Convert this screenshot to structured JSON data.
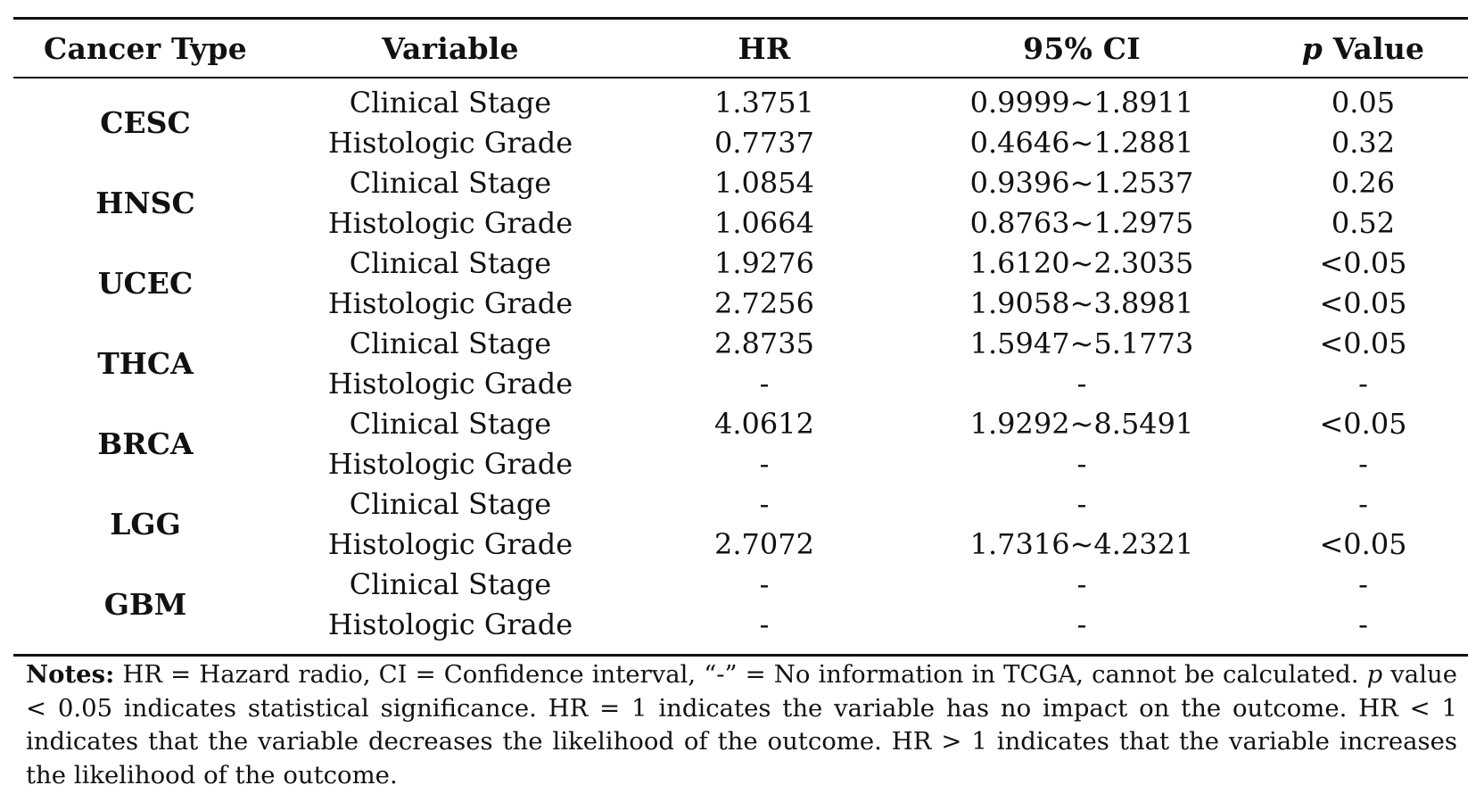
{
  "table": {
    "headers": {
      "cancer_type": "Cancer Type",
      "variable": "Variable",
      "hr": "HR",
      "ci": "95% CI",
      "p_letter": "p",
      "p_rest": " Value"
    },
    "groups": [
      {
        "type": "CESC",
        "rows": [
          {
            "variable": "Clinical Stage",
            "hr": "1.3751",
            "ci": "0.9999~1.8911",
            "p": "0.05"
          },
          {
            "variable": "Histologic Grade",
            "hr": "0.7737",
            "ci": "0.4646~1.2881",
            "p": "0.32"
          }
        ]
      },
      {
        "type": "HNSC",
        "rows": [
          {
            "variable": "Clinical Stage",
            "hr": "1.0854",
            "ci": "0.9396~1.2537",
            "p": "0.26"
          },
          {
            "variable": "Histologic Grade",
            "hr": "1.0664",
            "ci": "0.8763~1.2975",
            "p": "0.52"
          }
        ]
      },
      {
        "type": "UCEC",
        "rows": [
          {
            "variable": "Clinical Stage",
            "hr": "1.9276",
            "ci": "1.6120~2.3035",
            "p": "<0.05"
          },
          {
            "variable": "Histologic Grade",
            "hr": "2.7256",
            "ci": "1.9058~3.8981",
            "p": "<0.05"
          }
        ]
      },
      {
        "type": "THCA",
        "rows": [
          {
            "variable": "Clinical Stage",
            "hr": "2.8735",
            "ci": "1.5947~5.1773",
            "p": "<0.05"
          },
          {
            "variable": "Histologic Grade",
            "hr": "-",
            "ci": "-",
            "p": "-"
          }
        ]
      },
      {
        "type": "BRCA",
        "rows": [
          {
            "variable": "Clinical Stage",
            "hr": "4.0612",
            "ci": "1.9292~8.5491",
            "p": "<0.05"
          },
          {
            "variable": "Histologic Grade",
            "hr": "-",
            "ci": "-",
            "p": "-"
          }
        ]
      },
      {
        "type": "LGG",
        "rows": [
          {
            "variable": "Clinical Stage",
            "hr": "-",
            "ci": "-",
            "p": "-"
          },
          {
            "variable": "Histologic Grade",
            "hr": "2.7072",
            "ci": "1.7316~4.2321",
            "p": "<0.05"
          }
        ]
      },
      {
        "type": "GBM",
        "rows": [
          {
            "variable": "Clinical Stage",
            "hr": "-",
            "ci": "-",
            "p": "-"
          },
          {
            "variable": "Histologic Grade",
            "hr": "-",
            "ci": "-",
            "p": "-"
          }
        ]
      }
    ]
  },
  "notes": {
    "label": "Notes:",
    "part1": " HR = Hazard radio, CI = Confidence interval, “-” = No information in TCGA, cannot be calculated. ",
    "p_letter": "p",
    "part2": " value < 0.05 indicates statistical significance. HR = 1 indicates the variable has no impact on the outcome. HR < 1 indicates that the variable decreases the likelihood of the outcome. HR > 1 indicates that the variable increases the likelihood of the outcome."
  }
}
